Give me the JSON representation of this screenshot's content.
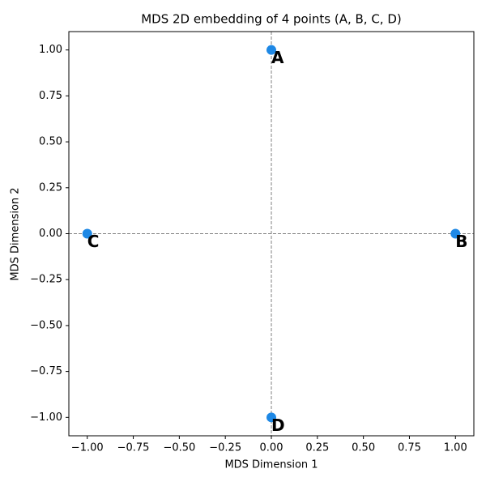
{
  "chart_data": {
    "type": "scatter",
    "title": "MDS 2D embedding of 4 points (A, B, C, D)",
    "x_label": "MDS Dimension 1",
    "y_label": "MDS Dimension 2",
    "series": [
      {
        "color": "#1e88e5",
        "x": [
          0,
          1,
          -1,
          0
        ],
        "values": [
          1,
          0,
          0,
          -1
        ],
        "labels": [
          "A",
          "B",
          "C",
          "D"
        ]
      }
    ],
    "xlim": [
      -1.1,
      1.1
    ],
    "ylim": [
      -1.1,
      1.1
    ],
    "xticks": [
      {
        "value": -1,
        "label": "−1.00"
      },
      {
        "value": -0.75,
        "label": "−0.75"
      },
      {
        "value": -0.5,
        "label": "−0.50"
      },
      {
        "value": -0.25,
        "label": "−0.25"
      },
      {
        "value": 0,
        "label": "0.00"
      },
      {
        "value": 0.25,
        "label": "0.25"
      },
      {
        "value": 0.5,
        "label": "0.50"
      },
      {
        "value": 0.75,
        "label": "0.75"
      },
      {
        "value": 1,
        "label": "1.00"
      }
    ],
    "yticks": [
      {
        "value": -1,
        "label": "−1.00"
      },
      {
        "value": -0.75,
        "label": "−0.75"
      },
      {
        "value": -0.5,
        "label": "−0.50"
      },
      {
        "value": -0.25,
        "label": "−0.25"
      },
      {
        "value": 0,
        "label": "0.00"
      },
      {
        "value": 0.25,
        "label": "0.25"
      },
      {
        "value": 0.5,
        "label": "0.50"
      },
      {
        "value": 0.75,
        "label": "0.75"
      },
      {
        "value": 1,
        "label": "1.00"
      }
    ],
    "reference_lines": {
      "x": 0,
      "y": 0,
      "color": "#808080"
    },
    "grid": false
  }
}
